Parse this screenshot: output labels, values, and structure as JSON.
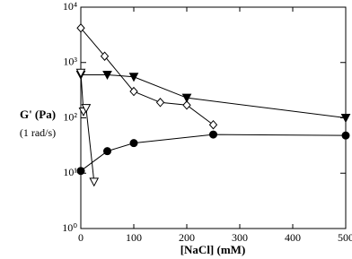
{
  "chart_data": {
    "type": "line",
    "log_y": true,
    "y_label_lines": [
      "G' (Pa)",
      "(1 rad/s)"
    ],
    "x_label": "[NaCl] (mM)",
    "xlim": [
      0,
      500
    ],
    "xticks": [
      0,
      100,
      200,
      300,
      400,
      500
    ],
    "ylim": [
      1,
      10000
    ],
    "yticks": [
      {
        "value": 1,
        "label": "10⁰"
      },
      {
        "value": 10,
        "label": "10¹"
      },
      {
        "value": 100,
        "label": "10²"
      },
      {
        "value": 1000,
        "label": "10³"
      },
      {
        "value": 10000,
        "label": "10⁴"
      }
    ],
    "series": [
      {
        "color": "#000000",
        "marker": "diamond",
        "filled": false,
        "x": [
          0,
          45,
          100,
          150,
          200,
          250
        ],
        "values": [
          4200,
          1300,
          300,
          190,
          170,
          75
        ]
      },
      {
        "color": "#000000",
        "marker": "triangle-down",
        "filled": true,
        "x": [
          0,
          50,
          100,
          200,
          500
        ],
        "values": [
          600,
          600,
          550,
          230,
          100
        ]
      },
      {
        "color": "#000000",
        "marker": "triangle-down",
        "filled": false,
        "x": [
          0,
          5,
          10,
          25
        ],
        "values": [
          650,
          130,
          150,
          7
        ]
      },
      {
        "color": "#000000",
        "marker": "circle",
        "filled": true,
        "x": [
          0,
          50,
          100,
          250,
          500
        ],
        "values": [
          11,
          25,
          35,
          50,
          48
        ]
      }
    ]
  }
}
